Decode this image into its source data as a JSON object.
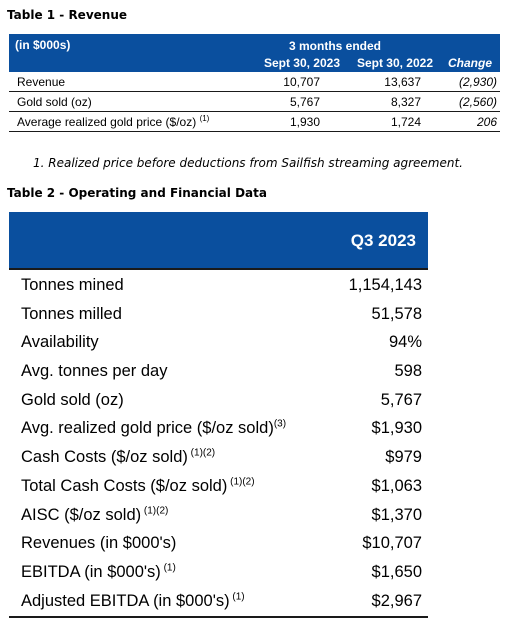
{
  "table1": {
    "title": "Table 1 - Revenue",
    "unit_label": "(in $000s)",
    "span_label": "3 months ended",
    "col_headers": [
      "Sept 30, 2023",
      "Sept 30, 2022",
      "Change"
    ],
    "rows": [
      {
        "label": "Revenue",
        "sup": "",
        "v1": "10,707",
        "v2": "13,637",
        "change": "(2,930)"
      },
      {
        "label": "Gold sold (oz)",
        "sup": "",
        "v1": "5,767",
        "v2": "8,327",
        "change": "(2,560)"
      },
      {
        "label": "Average realized gold price ($/oz)",
        "sup": "(1)",
        "v1": "1,930",
        "v2": "1,724",
        "change": "206"
      }
    ],
    "footnote": "1. Realized price before deductions from Sailfish streaming agreement."
  },
  "table2": {
    "title": "Table 2 - Operating and Financial Data",
    "col_header": "Q3 2023",
    "rows": [
      {
        "label": "Tonnes mined",
        "sup": "",
        "value": "1,154,143"
      },
      {
        "label": "Tonnes milled",
        "sup": "",
        "value": "51,578"
      },
      {
        "label": "Availability",
        "sup": "",
        "value": "94%"
      },
      {
        "label": "Avg. tonnes per day",
        "sup": "",
        "value": "598"
      },
      {
        "label": "Gold sold (oz)",
        "sup": "",
        "value": "5,767"
      },
      {
        "label": "Avg. realized gold price ($/oz sold)",
        "sup": "(3)",
        "value": "$1,930"
      },
      {
        "label": "Cash Costs ($/oz sold)",
        "sup": " (1)(2)",
        "value": "$979"
      },
      {
        "label": "Total Cash Costs ($/oz sold)",
        "sup": " (1)(2)",
        "value": "$1,063"
      },
      {
        "label": "AISC ($/oz sold)",
        "sup": " (1)(2)",
        "value": "$1,370"
      },
      {
        "label": "Revenues (in $000's)",
        "sup": "",
        "value": "$10,707"
      },
      {
        "label": "EBITDA (in $000's)",
        "sup": " (1)",
        "value": "$1,650"
      },
      {
        "label": "Adjusted EBITDA (in $000's)",
        "sup": " (1)",
        "value": "$2,967"
      }
    ]
  },
  "colors": {
    "header_bg": "#0a4f9e",
    "header_text": "#ffffff"
  }
}
